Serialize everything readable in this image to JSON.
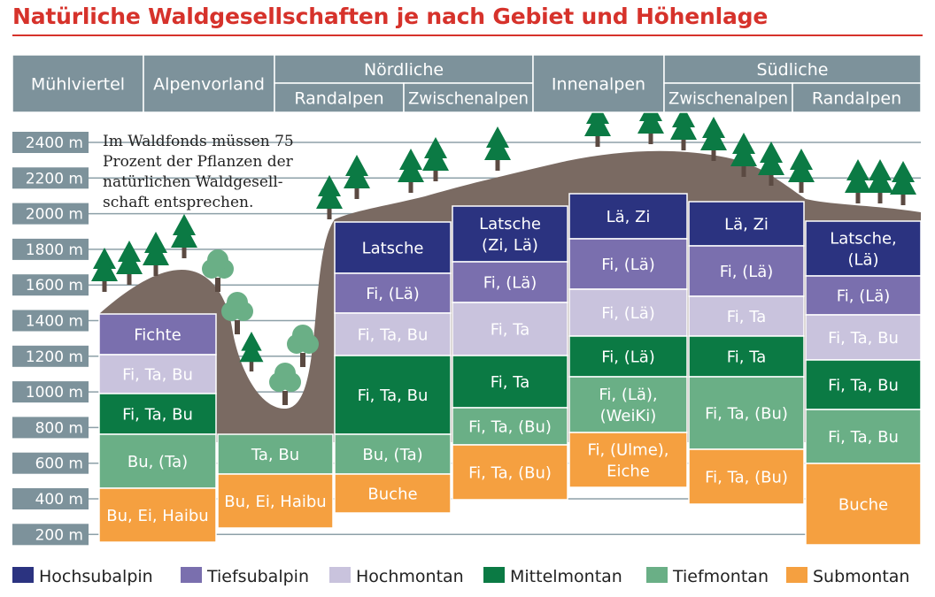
{
  "title": "Natürliche Waldgesellschaften je nach Gebiet und Höhenlage",
  "headers": {
    "muehlviertel": "Mühlviertel",
    "alpenvorland": "Alpenvorland",
    "noerdliche": "Nördliche",
    "noerdliche_randalpen": "Randalpen",
    "noerdliche_zwischenalpen": "Zwischenalpen",
    "innenalpen": "Innenalpen",
    "suedliche": "Südliche",
    "suedliche_zwischenalpen": "Zwischenalpen",
    "suedliche_randalpen": "Randalpen"
  },
  "note": [
    "Im Waldfonds müssen 75",
    "Prozent der Pflanzen der",
    "natürlichen Waldgesell-",
    "schaft entsprechen."
  ],
  "altitudes": [
    "2400 m",
    "2200 m",
    "2000 m",
    "1800 m",
    "1600 m",
    "1400 m",
    "1200 m",
    "1000 m",
    "800 m",
    "600 m",
    "400 m",
    "200 m"
  ],
  "colors": {
    "Hochsubalpin": "#2b3380",
    "Tiefsubalpin": "#7a6fae",
    "Hochmontan": "#c9c3dd",
    "Mittelmontan": "#0b7a44",
    "Tiefmontan": "#6aaf86",
    "Submontan": "#f5a040",
    "header": "#7d929b",
    "terrain": "#7a6a62",
    "tree": "#0b7a44",
    "trunk": "#5b4a42"
  },
  "legend": [
    "Hochsubalpin",
    "Tiefsubalpin",
    "Hochmontan",
    "Mittelmontan",
    "Tiefmontan",
    "Submontan"
  ],
  "columns": [
    {
      "region": "Mühlviertel",
      "cells": [
        {
          "zone": "Tiefsubalpin",
          "lines": [
            "Fichte"
          ]
        },
        {
          "zone": "Hochmontan",
          "lines": [
            "Fi, Ta, Bu"
          ]
        },
        {
          "zone": "Mittelmontan",
          "lines": [
            "Fi, Ta, Bu"
          ]
        },
        {
          "zone": "Tiefmontan",
          "lines": [
            "Bu, (Ta)"
          ]
        },
        {
          "zone": "Submontan",
          "lines": [
            "Bu, Ei, Haibu"
          ]
        }
      ]
    },
    {
      "region": "Alpenvorland",
      "cells": [
        {
          "zone": "Tiefmontan",
          "lines": [
            "Ta, Bu"
          ]
        },
        {
          "zone": "Submontan",
          "lines": [
            "Bu, Ei, Haibu"
          ]
        }
      ]
    },
    {
      "region": "Nördliche Randalpen",
      "cells": [
        {
          "zone": "Hochsubalpin",
          "lines": [
            "Latsche"
          ]
        },
        {
          "zone": "Tiefsubalpin",
          "lines": [
            "Fi, (Lä)"
          ]
        },
        {
          "zone": "Hochmontan",
          "lines": [
            "Fi, Ta, Bu"
          ]
        },
        {
          "zone": "Mittelmontan",
          "lines": [
            "Fi, Ta, Bu"
          ]
        },
        {
          "zone": "Tiefmontan",
          "lines": [
            "Bu, (Ta)"
          ]
        },
        {
          "zone": "Submontan",
          "lines": [
            "Buche"
          ]
        }
      ]
    },
    {
      "region": "Nördliche Zwischenalpen",
      "cells": [
        {
          "zone": "Hochsubalpin",
          "lines": [
            "Latsche",
            "(Zi, Lä)"
          ]
        },
        {
          "zone": "Tiefsubalpin",
          "lines": [
            "Fi, (Lä)"
          ]
        },
        {
          "zone": "Hochmontan",
          "lines": [
            "Fi, Ta"
          ]
        },
        {
          "zone": "Mittelmontan",
          "lines": [
            "Fi, Ta"
          ]
        },
        {
          "zone": "Tiefmontan",
          "lines": [
            "Fi, Ta, (Bu)"
          ]
        },
        {
          "zone": "Submontan",
          "lines": [
            "Fi, Ta, (Bu)"
          ]
        }
      ]
    },
    {
      "region": "Innenalpen",
      "cells": [
        {
          "zone": "Hochsubalpin",
          "lines": [
            "Lä, Zi"
          ]
        },
        {
          "zone": "Tiefsubalpin",
          "lines": [
            "Fi, (Lä)"
          ]
        },
        {
          "zone": "Hochmontan",
          "lines": [
            "Fi, (Lä)"
          ]
        },
        {
          "zone": "Mittelmontan",
          "lines": [
            "Fi, (Lä)"
          ]
        },
        {
          "zone": "Tiefmontan",
          "lines": [
            "Fi, (Lä),",
            "(WeiKi)"
          ]
        },
        {
          "zone": "Submontan",
          "lines": [
            "Fi, (Ulme),",
            "Eiche"
          ]
        }
      ]
    },
    {
      "region": "Südliche Zwischenalpen",
      "cells": [
        {
          "zone": "Hochsubalpin",
          "lines": [
            "Lä, Zi"
          ]
        },
        {
          "zone": "Tiefsubalpin",
          "lines": [
            "Fi, (Lä)"
          ]
        },
        {
          "zone": "Hochmontan",
          "lines": [
            "Fi, Ta"
          ]
        },
        {
          "zone": "Mittelmontan",
          "lines": [
            "Fi, Ta"
          ]
        },
        {
          "zone": "Tiefmontan",
          "lines": [
            "Fi, Ta, (Bu)"
          ]
        },
        {
          "zone": "Submontan",
          "lines": [
            "Fi, Ta, (Bu)"
          ]
        }
      ]
    },
    {
      "region": "Südliche Randalpen",
      "cells": [
        {
          "zone": "Hochsubalpin",
          "lines": [
            "Latsche,",
            "(Lä)"
          ]
        },
        {
          "zone": "Tiefsubalpin",
          "lines": [
            "Fi, (Lä)"
          ]
        },
        {
          "zone": "Hochmontan",
          "lines": [
            "Fi, Ta, Bu"
          ]
        },
        {
          "zone": "Mittelmontan",
          "lines": [
            "Fi, Ta, Bu"
          ]
        },
        {
          "zone": "Tiefmontan",
          "lines": [
            "Fi, Ta, Bu"
          ]
        },
        {
          "zone": "Submontan",
          "lines": [
            "Buche"
          ]
        }
      ]
    }
  ]
}
